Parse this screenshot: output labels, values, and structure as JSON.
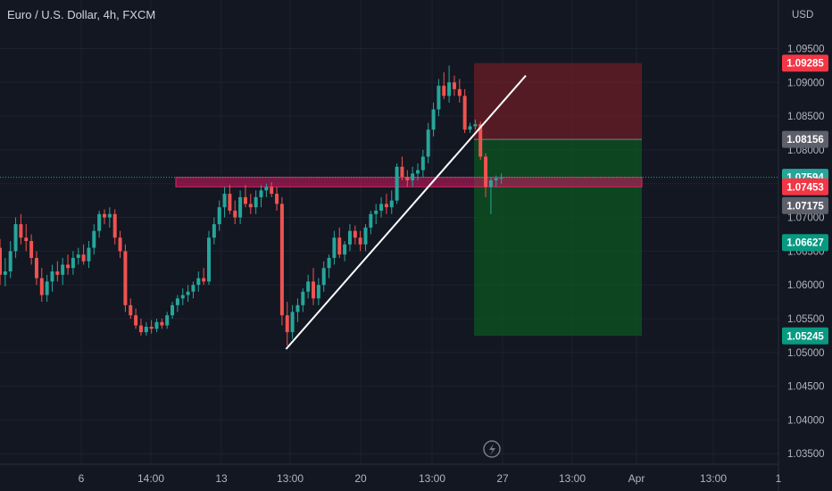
{
  "chart_data": {
    "type": "candlestick",
    "title": "Euro / U.S. Dollar, 4h, FXCM",
    "currency": "USD",
    "ylim": [
      1.0345,
      1.0985
    ],
    "y_ticks": [
      "1.03500",
      "1.04000",
      "1.04500",
      "1.05000",
      "1.05500",
      "1.06000",
      "1.06500",
      "1.07000",
      "1.07500",
      "1.08000",
      "1.08500",
      "1.09000",
      "1.09500"
    ],
    "x_ticks": [
      "6",
      "14:00",
      "13",
      "13:00",
      "20",
      "13:00",
      "27",
      "13:00",
      "Apr",
      "13:00",
      "1"
    ],
    "price_labels": [
      {
        "label": "1.09285",
        "role": "stop-loss",
        "color": "#f23645"
      },
      {
        "label": "1.08156",
        "role": "entry",
        "color": "#5d606b"
      },
      {
        "label": "1.07594",
        "role": "last-price",
        "color": "#26a69a"
      },
      {
        "label": "1.07453",
        "role": "zone",
        "color": "#f23645"
      },
      {
        "label": "1.07175",
        "role": "zone",
        "color": "#5d606b"
      },
      {
        "label": "1.06627",
        "role": "target",
        "color": "#089981"
      },
      {
        "label": "1.05245",
        "role": "target",
        "color": "#089981"
      }
    ],
    "candles": [
      [
        1.0655,
        1.0668,
        1.06,
        1.0615
      ],
      [
        1.0615,
        1.064,
        1.0598,
        1.062
      ],
      [
        1.062,
        1.0665,
        1.061,
        1.065
      ],
      [
        1.065,
        1.07,
        1.064,
        1.069
      ],
      [
        1.069,
        1.0705,
        1.066,
        1.067
      ],
      [
        1.067,
        1.069,
        1.065,
        1.0665
      ],
      [
        1.0665,
        1.0675,
        1.063,
        1.064
      ],
      [
        1.064,
        1.065,
        1.06,
        1.061
      ],
      [
        1.061,
        1.0625,
        1.0575,
        1.0585
      ],
      [
        1.0585,
        1.0615,
        1.0575,
        1.0605
      ],
      [
        1.0605,
        1.063,
        1.059,
        1.062
      ],
      [
        1.062,
        1.0635,
        1.0605,
        1.0615
      ],
      [
        1.0615,
        1.064,
        1.06,
        1.063
      ],
      [
        1.063,
        1.0645,
        1.0615,
        1.0625
      ],
      [
        1.0625,
        1.065,
        1.0615,
        1.064
      ],
      [
        1.064,
        1.0655,
        1.063,
        1.0645
      ],
      [
        1.0645,
        1.066,
        1.063,
        1.0635
      ],
      [
        1.0635,
        1.0665,
        1.0625,
        1.0655
      ],
      [
        1.0655,
        1.069,
        1.0645,
        1.068
      ],
      [
        1.068,
        1.071,
        1.067,
        1.0705
      ],
      [
        1.0705,
        1.0712,
        1.069,
        1.07
      ],
      [
        1.07,
        1.0715,
        1.0685,
        1.0705
      ],
      [
        1.0705,
        1.0712,
        1.066,
        1.067
      ],
      [
        1.067,
        1.068,
        1.064,
        1.065
      ],
      [
        1.065,
        1.066,
        1.056,
        1.057
      ],
      [
        1.057,
        1.058,
        1.055,
        1.0555
      ],
      [
        1.0555,
        1.0565,
        1.0535,
        1.054
      ],
      [
        1.054,
        1.055,
        1.0525,
        1.053
      ],
      [
        1.053,
        1.0545,
        1.0525,
        1.0538
      ],
      [
        1.0538,
        1.0548,
        1.0528,
        1.0535
      ],
      [
        1.0535,
        1.055,
        1.053,
        1.0545
      ],
      [
        1.0545,
        1.055,
        1.0535,
        1.054
      ],
      [
        1.054,
        1.056,
        1.0535,
        1.0555
      ],
      [
        1.0555,
        1.0575,
        1.055,
        1.057
      ],
      [
        1.057,
        1.0585,
        1.056,
        1.058
      ],
      [
        1.058,
        1.0595,
        1.057,
        1.0585
      ],
      [
        1.0585,
        1.06,
        1.0575,
        1.059
      ],
      [
        1.059,
        1.0605,
        1.058,
        1.06
      ],
      [
        1.06,
        1.062,
        1.059,
        1.061
      ],
      [
        1.061,
        1.0625,
        1.06,
        1.0605
      ],
      [
        1.0605,
        1.068,
        1.06,
        1.067
      ],
      [
        1.067,
        1.07,
        1.066,
        1.069
      ],
      [
        1.069,
        1.0725,
        1.068,
        1.0715
      ],
      [
        1.0715,
        1.0745,
        1.07,
        1.0735
      ],
      [
        1.0735,
        1.0748,
        1.0705,
        1.071
      ],
      [
        1.071,
        1.0725,
        1.069,
        1.07
      ],
      [
        1.07,
        1.074,
        1.069,
        1.073
      ],
      [
        1.073,
        1.0748,
        1.0715,
        1.072
      ],
      [
        1.072,
        1.0735,
        1.0705,
        1.0715
      ],
      [
        1.0715,
        1.074,
        1.0705,
        1.073
      ],
      [
        1.073,
        1.0748,
        1.0715,
        1.074
      ],
      [
        1.074,
        1.075,
        1.073,
        1.0745
      ],
      [
        1.0745,
        1.0752,
        1.073,
        1.0735
      ],
      [
        1.0735,
        1.0745,
        1.071,
        1.072
      ],
      [
        1.072,
        1.073,
        1.054,
        1.0555
      ],
      [
        1.0555,
        1.0575,
        1.051,
        1.053
      ],
      [
        1.053,
        1.057,
        1.052,
        1.056
      ],
      [
        1.056,
        1.058,
        1.0545,
        1.057
      ],
      [
        1.057,
        1.0595,
        1.056,
        1.059
      ],
      [
        1.059,
        1.0615,
        1.058,
        1.0605
      ],
      [
        1.0605,
        1.0625,
        1.057,
        1.058
      ],
      [
        1.058,
        1.061,
        1.057,
        1.06
      ],
      [
        1.06,
        1.0635,
        1.059,
        1.0625
      ],
      [
        1.0625,
        1.0645,
        1.061,
        1.064
      ],
      [
        1.064,
        1.068,
        1.063,
        1.067
      ],
      [
        1.067,
        1.0685,
        1.064,
        1.0645
      ],
      [
        1.0645,
        1.0665,
        1.0635,
        1.066
      ],
      [
        1.066,
        1.069,
        1.065,
        1.068
      ],
      [
        1.068,
        1.0688,
        1.066,
        1.067
      ],
      [
        1.067,
        1.068,
        1.065,
        1.066
      ],
      [
        1.066,
        1.069,
        1.065,
        1.0685
      ],
      [
        1.0685,
        1.071,
        1.0675,
        1.0705
      ],
      [
        1.0705,
        1.072,
        1.069,
        1.071
      ],
      [
        1.071,
        1.073,
        1.07,
        1.072
      ],
      [
        1.072,
        1.0735,
        1.0705,
        1.0715
      ],
      [
        1.0715,
        1.074,
        1.0705,
        1.0725
      ],
      [
        1.0725,
        1.078,
        1.072,
        1.0775
      ],
      [
        1.0775,
        1.079,
        1.0755,
        1.076
      ],
      [
        1.076,
        1.077,
        1.0745,
        1.0755
      ],
      [
        1.0755,
        1.0775,
        1.0745,
        1.0765
      ],
      [
        1.0765,
        1.078,
        1.0755,
        1.077
      ],
      [
        1.077,
        1.08,
        1.076,
        1.079
      ],
      [
        1.079,
        1.084,
        1.078,
        1.083
      ],
      [
        1.083,
        1.087,
        1.082,
        1.086
      ],
      [
        1.086,
        1.0905,
        1.085,
        1.0895
      ],
      [
        1.0895,
        1.0915,
        1.0875,
        1.088
      ],
      [
        1.088,
        1.0925,
        1.087,
        1.09
      ],
      [
        1.09,
        1.091,
        1.088,
        1.089
      ],
      [
        1.089,
        1.0905,
        1.087,
        1.088
      ],
      [
        1.088,
        1.089,
        1.0825,
        1.083
      ],
      [
        1.083,
        1.084,
        1.0825,
        1.0835
      ],
      [
        1.0835,
        1.0845,
        1.083,
        1.0838
      ],
      [
        1.0838,
        1.0842,
        1.0785,
        1.079
      ],
      [
        1.079,
        1.0795,
        1.073,
        1.0745
      ],
      [
        1.0745,
        1.076,
        1.0705,
        1.0755
      ],
      [
        1.0755,
        1.0762,
        1.0745,
        1.0758
      ],
      [
        1.0758,
        1.0765,
        1.075,
        1.0759
      ]
    ],
    "support_zone": {
      "top": 1.07594,
      "bottom": 1.07453
    },
    "trendline": {
      "from": [
        24,
        1.0505
      ],
      "to": [
        104,
        1.091
      ]
    },
    "position": {
      "entry": 1.08156,
      "stop": 1.09285,
      "target": 1.05245
    },
    "colors": {
      "up": "#26a69a",
      "down": "#ef5350",
      "zone": "#c2185b",
      "profit": "#0b5a1f",
      "loss": "#6b1e25"
    }
  },
  "ui": {
    "title": "Euro / U.S. Dollar, 4h, FXCM",
    "currency": "USD",
    "lightning": "lightning-icon"
  }
}
